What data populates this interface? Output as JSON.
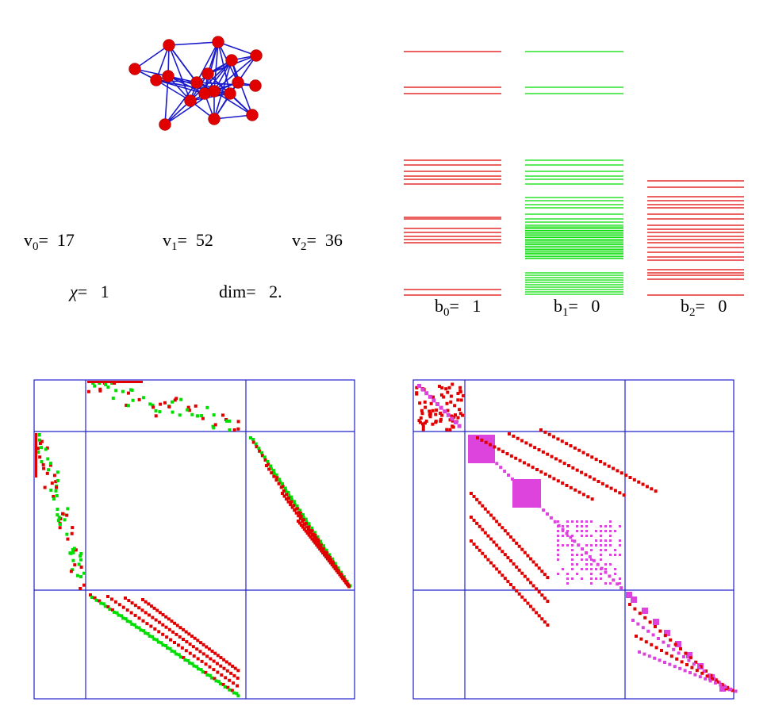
{
  "stats": {
    "v0": {
      "sym": "v",
      "sub": "0",
      "val": "17"
    },
    "v1": {
      "sym": "v",
      "sub": "1",
      "val": "52"
    },
    "v2": {
      "sym": "v",
      "sub": "2",
      "val": "36"
    },
    "chi": {
      "sym": "χ",
      "val": "1"
    },
    "dim": {
      "sym": "dim",
      "val": "2."
    }
  },
  "betti": {
    "b0": {
      "sym": "b",
      "sub": "0",
      "val": "1"
    },
    "b1": {
      "sym": "b",
      "sub": "1",
      "val": "0"
    },
    "b2": {
      "sym": "b",
      "sub": "2",
      "val": "0"
    }
  },
  "colors": {
    "node": "#e00000",
    "edge": "#1a1acc",
    "red": "#e00000",
    "green": "#00dd00",
    "magenta": "#dd44dd",
    "grid": "#2222cc"
  }
}
